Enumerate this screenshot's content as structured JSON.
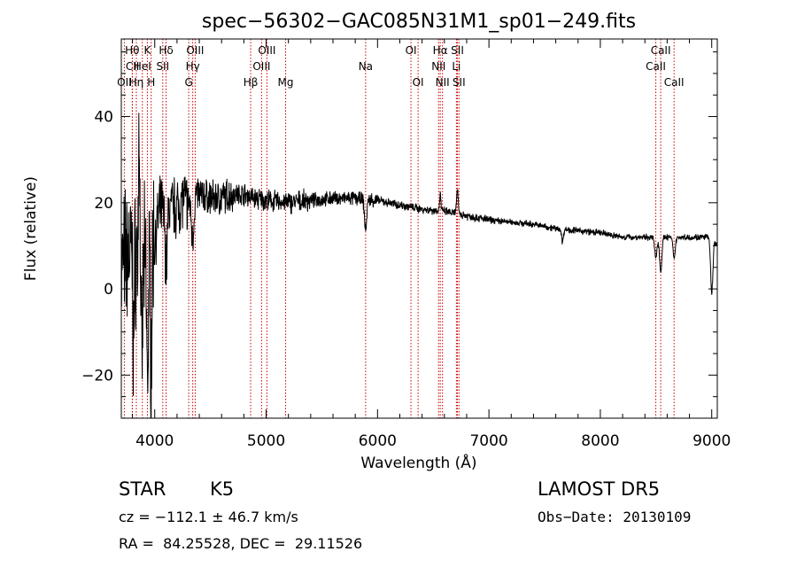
{
  "chart_data": {
    "type": "line",
    "title": "spec−56302−GAC085N31M1_sp01−249.fits",
    "xlabel": "Wavelength (Å)",
    "ylabel": "Flux (relative)",
    "xlim": [
      3700,
      9050
    ],
    "ylim": [
      -30,
      58
    ],
    "xticks": [
      4000,
      5000,
      6000,
      7000,
      8000,
      9000
    ],
    "yticks": [
      -20,
      0,
      20,
      40
    ],
    "ytick_labels": [
      "−20",
      "0",
      "20",
      "40"
    ],
    "grid": false,
    "line_color": "#000000",
    "marker_color": "#cc0000",
    "lines": [
      {
        "label": "Hθ",
        "wl": 3798,
        "row": 0
      },
      {
        "label": "CII",
        "wl": 3800,
        "row": 1
      },
      {
        "label": "OII",
        "wl": 3727,
        "row": 2
      },
      {
        "label": "Hη",
        "wl": 3835,
        "row": 2
      },
      {
        "label": "HeI",
        "wl": 3889,
        "row": 1
      },
      {
        "label": "K",
        "wl": 3934,
        "row": 0
      },
      {
        "label": "H",
        "wl": 3968,
        "row": 2
      },
      {
        "label": "Hδ",
        "wl": 4102,
        "row": 0
      },
      {
        "label": "SII",
        "wl": 4072,
        "row": 1
      },
      {
        "label": "OIII",
        "wl": 4363,
        "row": 0
      },
      {
        "label": "Hγ",
        "wl": 4341,
        "row": 1
      },
      {
        "label": "G",
        "wl": 4305,
        "row": 2
      },
      {
        "label": "Hβ",
        "wl": 4861,
        "row": 2
      },
      {
        "label": "OIII",
        "wl": 4959,
        "row": 1
      },
      {
        "label": "OIII",
        "wl": 5007,
        "row": 0
      },
      {
        "label": "Mg",
        "wl": 5175,
        "row": 2
      },
      {
        "label": "Na",
        "wl": 5893,
        "row": 1
      },
      {
        "label": "OI",
        "wl": 6300,
        "row": 0
      },
      {
        "label": "OI",
        "wl": 6364,
        "row": 2
      },
      {
        "label": "NII",
        "wl": 6548,
        "row": 1
      },
      {
        "label": "Hα",
        "wl": 6563,
        "row": 0
      },
      {
        "label": "NII",
        "wl": 6583,
        "row": 2
      },
      {
        "label": "Li",
        "wl": 6708,
        "row": 1
      },
      {
        "label": "SII",
        "wl": 6717,
        "row": 0
      },
      {
        "label": "SII",
        "wl": 6731,
        "row": 2
      },
      {
        "label": "CaII",
        "wl": 8498,
        "row": 1
      },
      {
        "label": "CaII",
        "wl": 8542,
        "row": 0
      },
      {
        "label": "CaII",
        "wl": 8662,
        "row": 2
      }
    ],
    "spectrum": {
      "anchors": [
        [
          3700,
          5
        ],
        [
          3750,
          8
        ],
        [
          3800,
          8
        ],
        [
          3850,
          8
        ],
        [
          3900,
          6
        ],
        [
          3950,
          7
        ],
        [
          4000,
          12
        ],
        [
          4050,
          19
        ],
        [
          4100,
          18
        ],
        [
          4150,
          19
        ],
        [
          4200,
          19
        ],
        [
          4250,
          21
        ],
        [
          4300,
          20
        ],
        [
          4350,
          22
        ],
        [
          4400,
          22
        ],
        [
          4500,
          21
        ],
        [
          4600,
          21
        ],
        [
          4700,
          22
        ],
        [
          4800,
          22
        ],
        [
          4900,
          21
        ],
        [
          5000,
          20.5
        ],
        [
          5200,
          20
        ],
        [
          5400,
          20.5
        ],
        [
          5600,
          21
        ],
        [
          5800,
          21
        ],
        [
          6000,
          20.5
        ],
        [
          6200,
          19.5
        ],
        [
          6400,
          18.5
        ],
        [
          6600,
          18
        ],
        [
          6800,
          17
        ],
        [
          7000,
          16
        ],
        [
          7200,
          15.5
        ],
        [
          7400,
          15
        ],
        [
          7600,
          14
        ],
        [
          7800,
          13.5
        ],
        [
          8000,
          13
        ],
        [
          8200,
          12
        ],
        [
          8400,
          12
        ],
        [
          8600,
          12
        ],
        [
          8800,
          12
        ],
        [
          9000,
          12
        ],
        [
          9050,
          10
        ]
      ],
      "features": [
        {
          "wl": 3810,
          "depth": -20,
          "width": 6
        },
        {
          "wl": 3860,
          "depth": 33,
          "width": 5
        },
        {
          "wl": 3885,
          "depth": -26,
          "width": 6
        },
        {
          "wl": 3935,
          "depth": -28,
          "width": 7
        },
        {
          "wl": 3968,
          "depth": -26,
          "width": 6
        },
        {
          "wl": 4102,
          "depth": -12,
          "width": 10
        },
        {
          "wl": 4340,
          "depth": -10,
          "width": 12
        },
        {
          "wl": 5893,
          "depth": -7,
          "width": 10
        },
        {
          "wl": 6563,
          "depth": 4,
          "width": 6
        },
        {
          "wl": 6717,
          "depth": 5,
          "width": 8
        },
        {
          "wl": 7660,
          "depth": -3,
          "width": 8
        },
        {
          "wl": 8498,
          "depth": -5,
          "width": 10
        },
        {
          "wl": 8542,
          "depth": -8,
          "width": 10
        },
        {
          "wl": 8662,
          "depth": -5,
          "width": 10
        },
        {
          "wl": 9000,
          "depth": -13,
          "width": 10
        }
      ]
    }
  },
  "info": {
    "obj_class": "STAR",
    "subclass": "K5",
    "survey": "LAMOST DR5",
    "cz_line": "cz = −112.1 ± 46.7 km/s",
    "obs_date": "Obs−Date: 20130109",
    "coords": "RA =  84.25528, DEC =  29.11526"
  }
}
